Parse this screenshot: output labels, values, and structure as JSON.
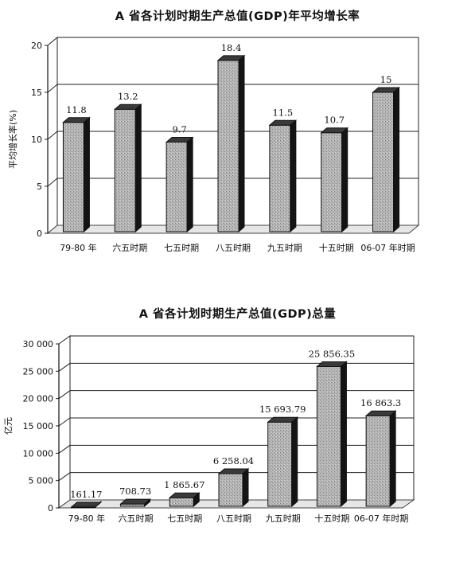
{
  "chart_data": [
    {
      "type": "bar",
      "title": "A 省各计划时期生产总值(GDP)年平均增长率",
      "xlabel": "",
      "ylabel": "平均增长率(%)",
      "categories": [
        "79-80 年",
        "六五时期",
        "七五时期",
        "八五时期",
        "九五时期",
        "十五时期",
        "06-07 年时期"
      ],
      "values": [
        11.8,
        13.2,
        9.7,
        18.4,
        11.5,
        10.7,
        15
      ],
      "value_labels": [
        "11.8",
        "13.2",
        "9.7",
        "18.4",
        "11.5",
        "10.7",
        "15"
      ],
      "ylim": [
        0,
        20
      ],
      "yticks": [
        "0",
        "5",
        "10",
        "15",
        "20"
      ],
      "ytick_values": [
        0,
        5,
        10,
        15,
        20
      ],
      "grid": true,
      "style": "3d-bar",
      "bar_color": "#a9a9a9"
    },
    {
      "type": "bar",
      "title": "A 省各计划时期生产总值(GDP)总量",
      "xlabel": "",
      "ylabel": "亿元",
      "categories": [
        "79-80 年",
        "六五时期",
        "七五时期",
        "八五时期",
        "九五时期",
        "十五时期",
        "06-07 年时期"
      ],
      "values": [
        161.17,
        708.73,
        1865.67,
        6258.04,
        15693.79,
        25856.35,
        16863.3
      ],
      "value_labels": [
        "161.17",
        "708.73",
        "1 865.67",
        "6 258.04",
        "15 693.79",
        "25 856.35",
        "16 863.3"
      ],
      "ylim": [
        0,
        30000
      ],
      "yticks": [
        "0",
        "5 000",
        "10 000",
        "15 000",
        "20 000",
        "25 000",
        "30 000"
      ],
      "ytick_values": [
        0,
        5000,
        10000,
        15000,
        20000,
        25000,
        30000
      ],
      "grid": true,
      "style": "3d-bar",
      "bar_color": "#a9a9a9"
    }
  ]
}
